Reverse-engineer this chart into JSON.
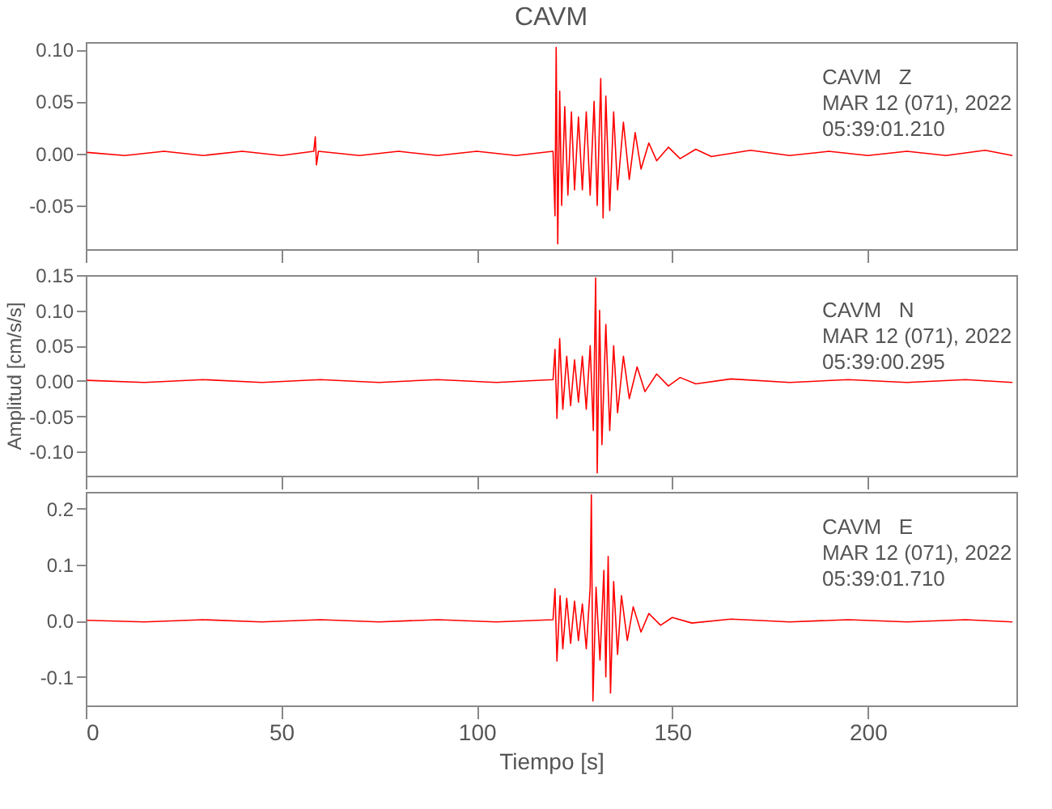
{
  "chart_data": [
    {
      "type": "line",
      "title": "CAVM",
      "annotations": [
        "CAVM   Z",
        "MAR 12 (071), 2022",
        "05:39:01.210"
      ],
      "color": "#ff0000",
      "tick_labels": "y",
      "xlim": [
        0,
        238
      ],
      "xticks": [
        {
          "value": 0,
          "label": null
        },
        {
          "value": 50,
          "label": null
        },
        {
          "value": 100,
          "label": null
        },
        {
          "value": 150,
          "label": null
        },
        {
          "value": 200,
          "label": null
        }
      ],
      "ylim": [
        -0.092,
        0.107
      ],
      "yticks": [
        {
          "value": 0.1,
          "label": "0.10"
        },
        {
          "value": 0.05,
          "label": "0.05"
        },
        {
          "value": 0,
          "label": "0.00"
        },
        {
          "value": -0.05,
          "label": "-0.05"
        }
      ],
      "x": [
        0.3,
        10,
        20,
        30,
        40,
        50,
        58.3,
        58.7,
        59.0,
        59.5,
        70,
        80,
        90,
        100,
        110,
        119.5,
        120.0,
        120.3,
        120.7,
        121.2,
        121.7,
        122.5,
        123.3,
        124.2,
        125,
        126,
        127,
        128,
        129,
        130,
        130.8,
        131.7,
        132.3,
        133,
        134,
        135,
        136,
        137.5,
        139,
        140.5,
        142,
        144,
        146,
        149,
        152,
        156,
        160,
        170,
        180,
        190,
        200,
        210,
        220,
        230,
        237
      ],
      "values": [
        0.001,
        -0.002,
        0.002,
        -0.002,
        0.002,
        -0.002,
        0.002,
        0.016,
        -0.011,
        0.002,
        -0.002,
        0.002,
        -0.002,
        0.002,
        -0.002,
        0.002,
        -0.06,
        0.102,
        -0.087,
        0.06,
        -0.05,
        0.045,
        -0.04,
        0.04,
        -0.035,
        0.035,
        -0.035,
        0.04,
        -0.04,
        0.05,
        -0.05,
        0.072,
        -0.062,
        0.055,
        -0.055,
        0.04,
        -0.035,
        0.03,
        -0.025,
        0.02,
        -0.015,
        0.01,
        -0.007,
        0.006,
        -0.005,
        0.004,
        -0.003,
        0.003,
        -0.002,
        0.002,
        -0.002,
        0.002,
        -0.002,
        0.003,
        -0.002
      ]
    },
    {
      "type": "line",
      "ylabel": "Amplitud [cm/s/s]",
      "annotations": [
        "CAVM   N",
        "MAR 12 (071), 2022",
        "05:39:00.295"
      ],
      "color": "#ff0000",
      "tick_labels": "y",
      "xlim": [
        0,
        238
      ],
      "xticks": [
        {
          "value": 0,
          "label": null
        },
        {
          "value": 50,
          "label": null
        },
        {
          "value": 100,
          "label": null
        },
        {
          "value": 150,
          "label": null
        },
        {
          "value": 200,
          "label": null
        }
      ],
      "ylim": [
        -0.134,
        0.15
      ],
      "yticks": [
        {
          "value": 0.15,
          "label": "0.15"
        },
        {
          "value": 0.1,
          "label": "0.10"
        },
        {
          "value": 0.05,
          "label": "0.05"
        },
        {
          "value": 0,
          "label": "0.00"
        },
        {
          "value": -0.05,
          "label": "-0.05"
        },
        {
          "value": -0.1,
          "label": "-0.10"
        }
      ],
      "x": [
        0.3,
        15,
        30,
        45,
        60,
        75,
        90,
        105,
        119.5,
        120,
        120.5,
        121.2,
        122,
        123,
        124,
        125,
        126,
        127,
        128,
        129,
        129.8,
        130.4,
        130.8,
        131.4,
        132,
        133,
        134,
        135,
        136,
        137.5,
        139,
        141,
        143,
        146,
        149,
        152,
        156,
        165,
        180,
        195,
        210,
        225,
        237
      ],
      "values": [
        0.001,
        -0.002,
        0.002,
        -0.002,
        0.002,
        -0.002,
        0.002,
        -0.002,
        0.002,
        0.045,
        -0.053,
        0.06,
        -0.04,
        0.035,
        -0.035,
        0.03,
        -0.03,
        0.035,
        -0.04,
        0.05,
        -0.07,
        0.146,
        -0.13,
        0.1,
        -0.09,
        0.08,
        -0.07,
        0.05,
        -0.045,
        0.035,
        -0.025,
        0.02,
        -0.015,
        0.01,
        -0.007,
        0.005,
        -0.004,
        0.003,
        -0.002,
        0.002,
        -0.002,
        0.002,
        -0.002
      ]
    },
    {
      "type": "line",
      "xlabel": "Tiempo [s]",
      "annotations": [
        "CAVM   E",
        "MAR 12 (071), 2022",
        "05:39:01.710"
      ],
      "color": "#ff0000",
      "xlim": [
        0,
        238
      ],
      "xticks": [
        0,
        50,
        100,
        150,
        200
      ],
      "ylim": [
        -0.151,
        0.23
      ],
      "yticks": [
        {
          "value": 0.2,
          "label": "0.2"
        },
        {
          "value": 0.1,
          "label": "0.1"
        },
        {
          "value": 0,
          "label": "0.0"
        },
        {
          "value": -0.1,
          "label": "-0.1"
        }
      ],
      "x": [
        0.3,
        15,
        30,
        45,
        60,
        75,
        90,
        105,
        119.5,
        120,
        120.5,
        121.3,
        122,
        123,
        124,
        125,
        126,
        127,
        128,
        129,
        129.3,
        129.7,
        130.5,
        131.5,
        132.5,
        133,
        133.6,
        134.2,
        135,
        136,
        137,
        138.5,
        140,
        142,
        144,
        147,
        150,
        155,
        165,
        180,
        195,
        210,
        225,
        237
      ],
      "values": [
        0.001,
        -0.002,
        0.002,
        -0.002,
        0.002,
        -0.002,
        0.002,
        -0.002,
        0.002,
        0.057,
        -0.072,
        0.045,
        -0.05,
        0.04,
        -0.04,
        0.035,
        -0.035,
        0.03,
        -0.05,
        0.06,
        0.225,
        -0.143,
        0.06,
        -0.07,
        0.09,
        -0.1,
        0.115,
        -0.129,
        0.07,
        -0.06,
        0.045,
        -0.035,
        0.025,
        -0.02,
        0.013,
        -0.008,
        0.006,
        -0.004,
        0.003,
        -0.002,
        0.002,
        -0.002,
        0.002,
        -0.002
      ]
    }
  ]
}
